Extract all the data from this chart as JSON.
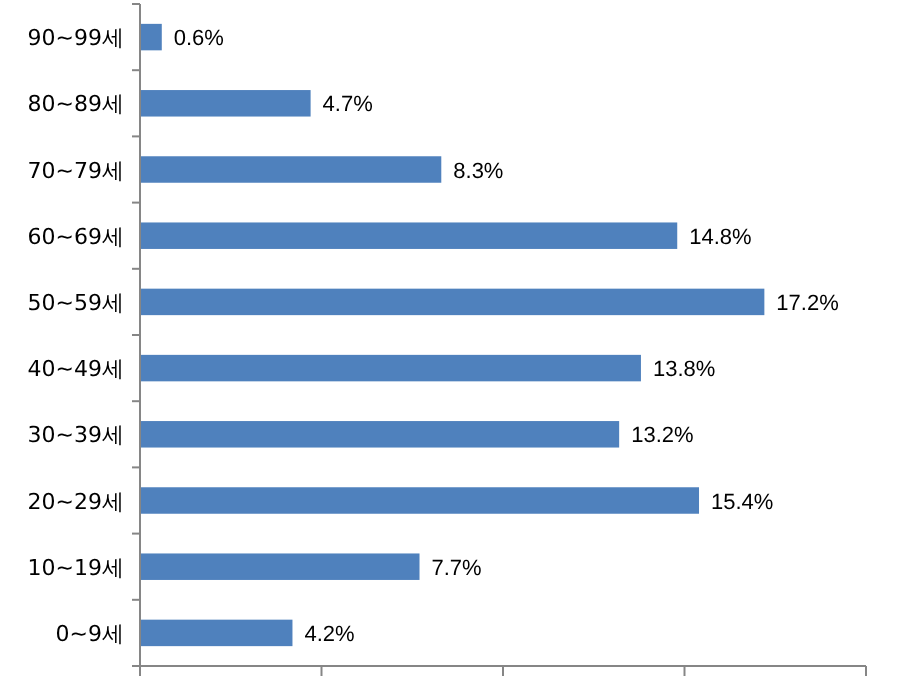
{
  "chart_data": {
    "type": "bar",
    "orientation": "horizontal",
    "categories": [
      "90~99세",
      "80~89세",
      "70~79세",
      "60~69세",
      "50~59세",
      "40~49세",
      "30~39세",
      "20~29세",
      "10~19세",
      "0~9세"
    ],
    "values": [
      0.6,
      4.7,
      8.3,
      14.8,
      17.2,
      13.8,
      13.2,
      15.4,
      7.7,
      4.2
    ],
    "value_labels": [
      "0.6%",
      "4.7%",
      "8.3%",
      "14.8%",
      "17.2%",
      "13.8%",
      "13.2%",
      "15.4%",
      "7.7%",
      "4.2%"
    ],
    "color": "#4f81bd",
    "xlim": [
      0,
      20
    ],
    "xticks": [
      {
        "value": 0,
        "label": null
      },
      {
        "value": 5,
        "label": null
      },
      {
        "value": 10,
        "label": null
      },
      {
        "value": 15,
        "label": null
      },
      {
        "value": 20,
        "label": null
      }
    ]
  }
}
